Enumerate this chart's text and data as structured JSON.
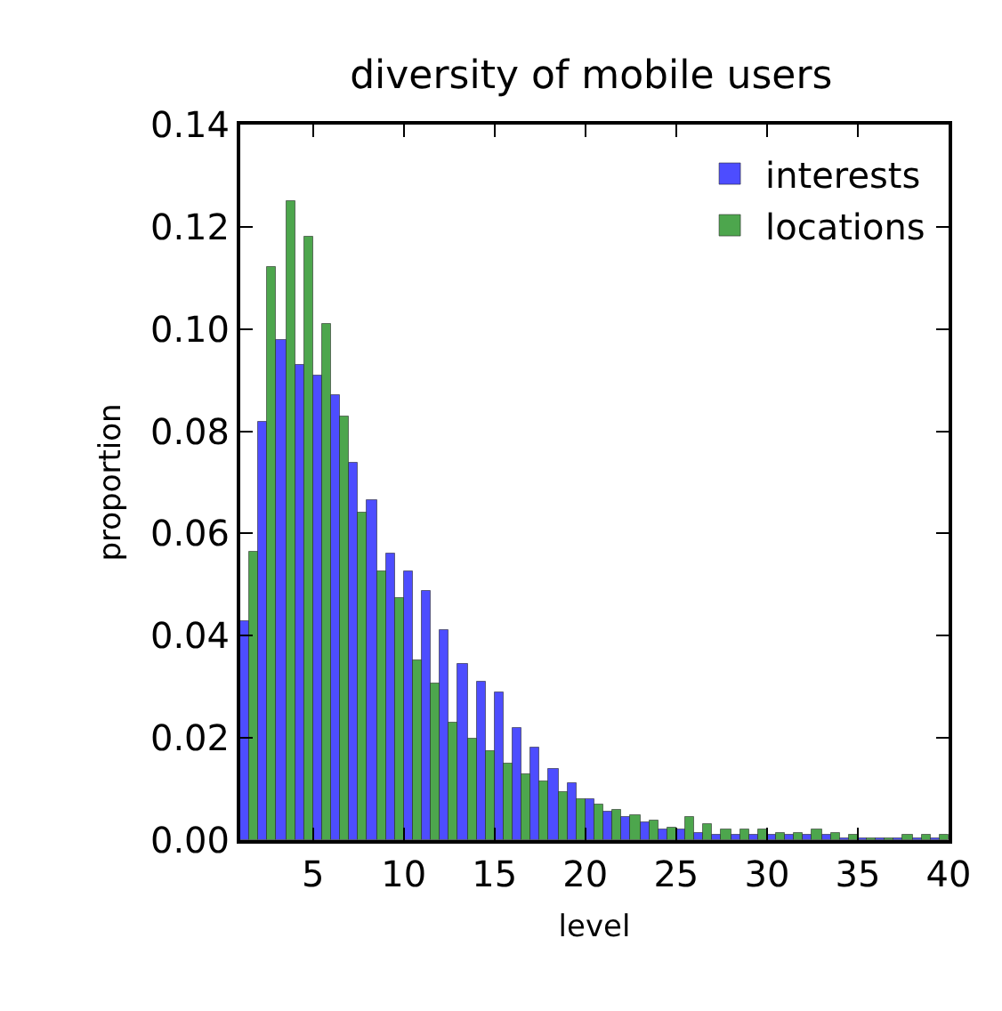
{
  "chart_data": {
    "type": "histogram",
    "title": "diversity of mobile users",
    "xlabel": "level",
    "ylabel": "proportion",
    "bins": [
      1,
      2,
      3,
      4,
      5,
      6,
      7,
      8,
      9,
      10,
      11,
      12,
      13,
      14,
      15,
      16,
      17,
      18,
      19,
      20,
      21,
      22,
      23,
      24,
      25,
      26,
      27,
      28,
      29,
      30,
      31,
      32,
      33,
      34,
      35,
      36,
      37,
      38,
      39,
      40
    ],
    "series": [
      {
        "name": "interests",
        "color": "#4d4dff",
        "values": [
          0.043,
          0.082,
          0.098,
          0.093,
          0.091,
          0.087,
          0.074,
          0.0665,
          0.056,
          0.0527,
          0.0486,
          0.041,
          0.0345,
          0.031,
          0.029,
          0.022,
          0.018,
          0.014,
          0.011,
          0.008,
          0.0055,
          0.0045,
          0.0035,
          0.002,
          0.002,
          0.0015,
          0.001,
          0.001,
          0.001,
          0.001,
          0.001,
          0.001,
          0.001,
          0.0005,
          0.0005,
          0.0005,
          0.0005,
          0.0005,
          0.0005
        ]
      },
      {
        "name": "locations",
        "color": "#4da64d",
        "values": [
          0.0565,
          0.112,
          0.125,
          0.118,
          0.101,
          0.083,
          0.064,
          0.0527,
          0.0475,
          0.0353,
          0.0307,
          0.023,
          0.02,
          0.0175,
          0.015,
          0.013,
          0.0115,
          0.0095,
          0.008,
          0.007,
          0.006,
          0.005,
          0.004,
          0.0025,
          0.0045,
          0.003,
          0.002,
          0.002,
          0.002,
          0.0015,
          0.0015,
          0.002,
          0.0015,
          0.001,
          0.0005,
          0.0005,
          0.001,
          0.001,
          0.001
        ]
      }
    ],
    "xlim": [
      1,
      40
    ],
    "xticks": [
      5,
      10,
      15,
      20,
      25,
      30,
      35,
      40
    ],
    "ylim": [
      0,
      0.14
    ],
    "yticks": [
      {
        "value": 0,
        "label": "0.00"
      },
      {
        "value": 0.02,
        "label": "0.02"
      },
      {
        "value": 0.04,
        "label": "0.04"
      },
      {
        "value": 0.06,
        "label": "0.06"
      },
      {
        "value": 0.08,
        "label": "0.08"
      },
      {
        "value": 0.1,
        "label": "0.10"
      },
      {
        "value": 0.12,
        "label": "0.12"
      },
      {
        "value": 0.14,
        "label": "0.14"
      }
    ],
    "grid": false,
    "legend": "top right"
  }
}
